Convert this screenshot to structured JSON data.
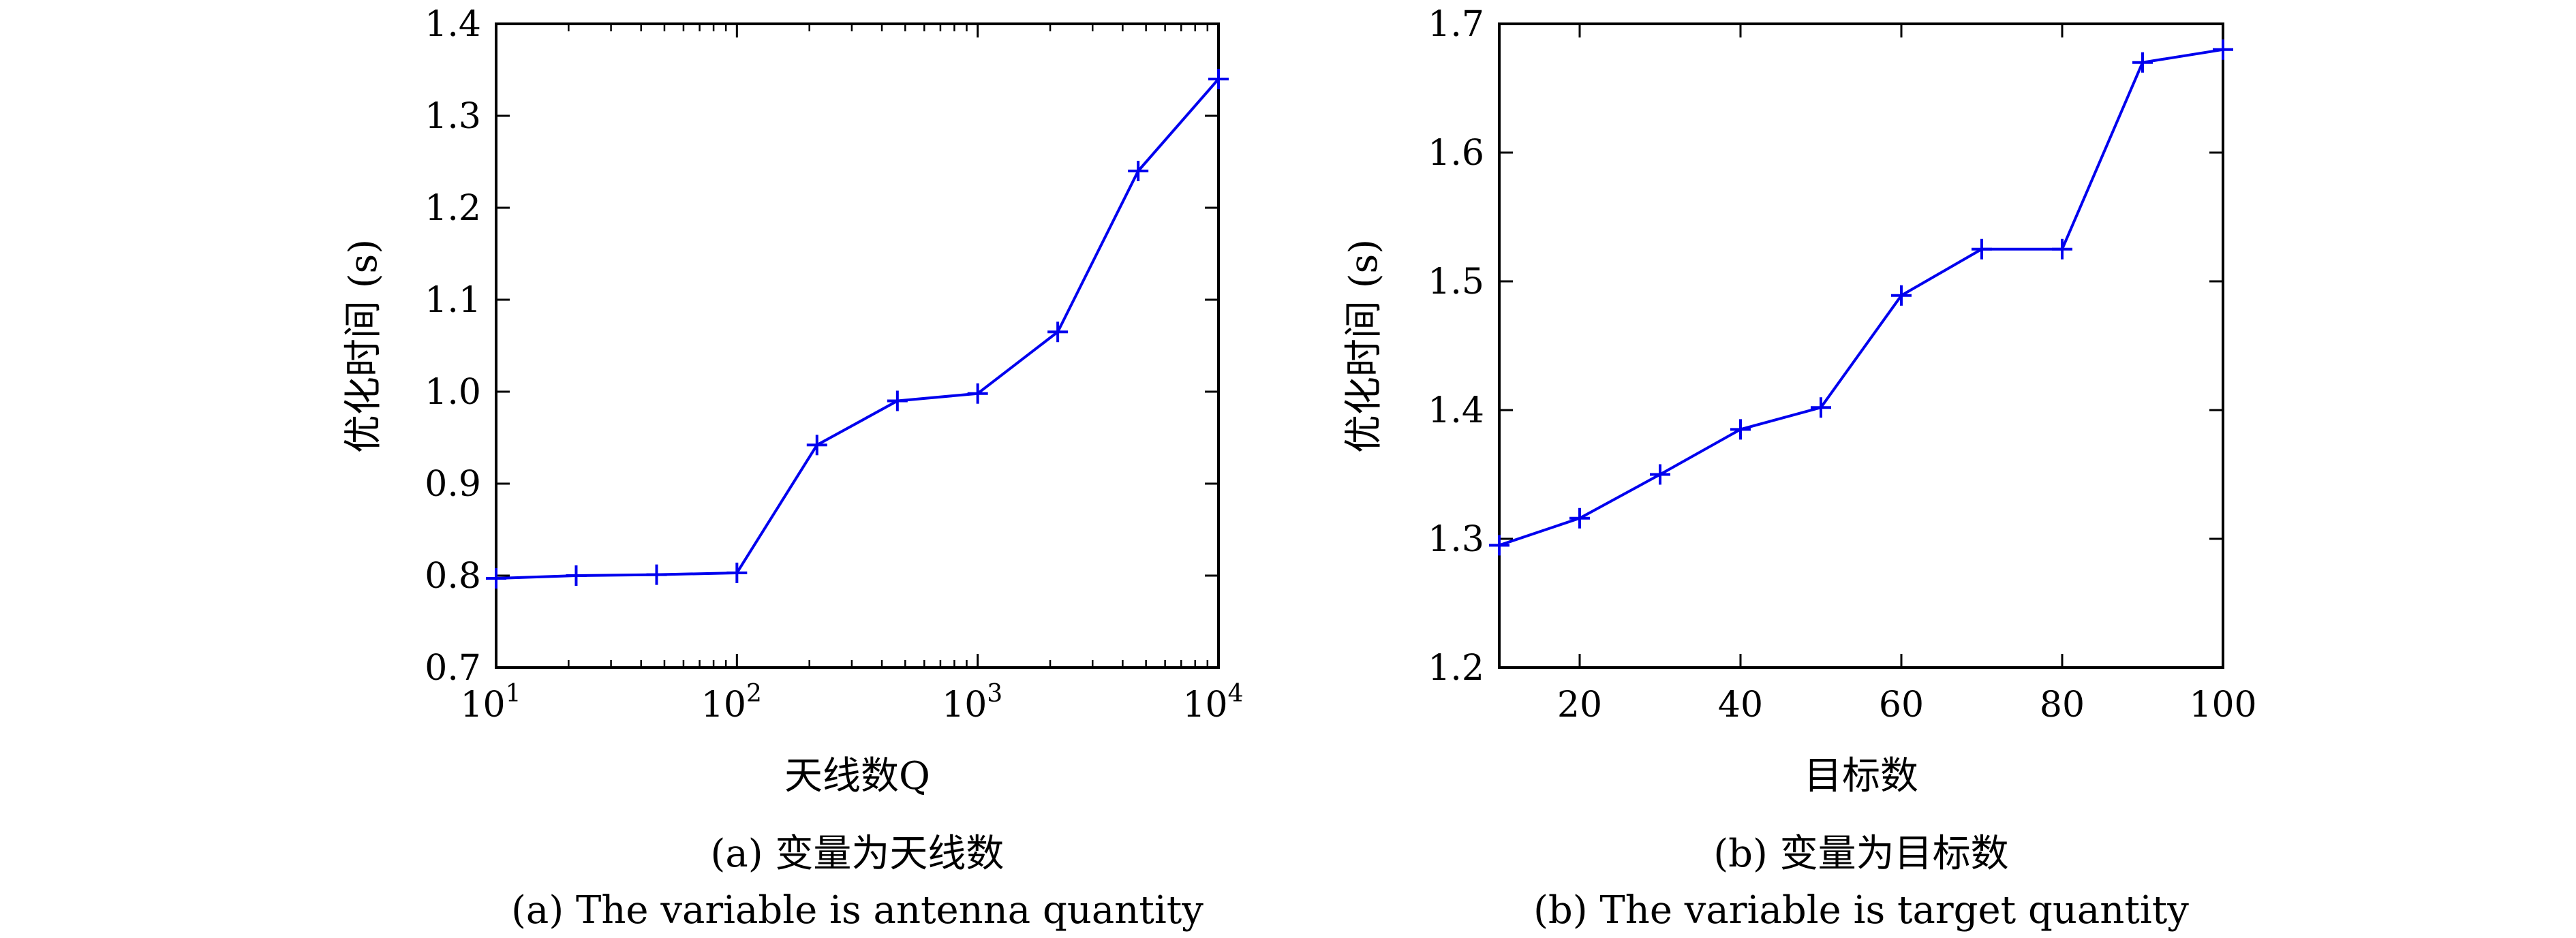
{
  "chart_data": [
    {
      "type": "line",
      "panel": "a",
      "xscale": "log",
      "xlim": [
        10,
        10000
      ],
      "ylim": [
        0.7,
        1.4
      ],
      "xlabel": "天线数Q",
      "ylabel": "优化时间 (s)",
      "x_ticks": [
        {
          "value": 10,
          "base": "10",
          "exp": "1"
        },
        {
          "value": 100,
          "base": "10",
          "exp": "2"
        },
        {
          "value": 1000,
          "base": "10",
          "exp": "3"
        },
        {
          "value": 10000,
          "base": "10",
          "exp": "4"
        }
      ],
      "y_ticks": [
        "0.7",
        "0.8",
        "0.9",
        "1.0",
        "1.1",
        "1.2",
        "1.3",
        "1.4"
      ],
      "caption_cn": "(a) 变量为天线数",
      "caption_en": "(a) The variable is antenna quantity",
      "color": "#0000ee",
      "marker": "plus",
      "series": [
        {
          "x": [
            10,
            21.5,
            46.4,
            100,
            215,
            464,
            1000,
            2150,
            4640,
            10000
          ],
          "values": [
            0.797,
            0.8,
            0.801,
            0.803,
            0.942,
            0.99,
            0.998,
            1.065,
            1.24,
            1.34
          ]
        }
      ]
    },
    {
      "type": "line",
      "panel": "b",
      "xscale": "linear",
      "xlim": [
        10,
        100
      ],
      "ylim": [
        1.2,
        1.7
      ],
      "xlabel": "目标数",
      "ylabel": "优化时间 (s)",
      "x_ticks": [
        "20",
        "40",
        "60",
        "80",
        "100"
      ],
      "y_ticks": [
        "1.2",
        "1.3",
        "1.4",
        "1.5",
        "1.6",
        "1.7"
      ],
      "caption_cn": "(b) 变量为目标数",
      "caption_en": "(b) The variable is target quantity",
      "color": "#0000ee",
      "marker": "plus",
      "series": [
        {
          "x": [
            10,
            20,
            30,
            40,
            50,
            60,
            70,
            80,
            90,
            100
          ],
          "values": [
            1.295,
            1.316,
            1.35,
            1.385,
            1.402,
            1.489,
            1.525,
            1.525,
            1.67,
            1.68
          ]
        }
      ]
    }
  ]
}
